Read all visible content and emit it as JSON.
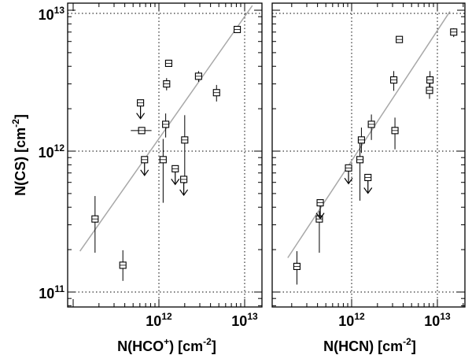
{
  "chart_data": [
    {
      "type": "scatter",
      "xlabel": "N(HCO⁺) [cm⁻²]",
      "ylabel": "N(CS) [cm⁻²]",
      "xscale": "log",
      "yscale": "log",
      "xlim": [
        100000000000.0,
        19000000000000.0
      ],
      "ylim": [
        85000000000.0,
        11400000000000.0
      ],
      "grid": "dotted at decades",
      "x_tick_labels": [
        "10¹²",
        "10¹³"
      ],
      "y_tick_labels": [
        "10¹¹",
        "10¹²",
        "10¹³"
      ],
      "fit_line": {
        "x": [
          120000000000.0,
          12300000000000.0
        ],
        "y": [
          195000000000.0,
          10800000000000.0
        ]
      },
      "points": [
        {
          "x": 180000000000.0,
          "y": 330000000000.0,
          "y_err_lo": 190000000000.0,
          "y_err_hi": 480000000000.0
        },
        {
          "x": 380000000000.0,
          "y": 155000000000.0,
          "y_err_lo": 120000000000.0,
          "y_err_hi": 198000000000.0
        },
        {
          "x": 610000000000.0,
          "y": 2200000000000.0,
          "upper_limit": true
        },
        {
          "x": 630000000000.0,
          "y": 1400000000000.0,
          "x_err_lo": 470000000000.0,
          "x_err_hi": 820000000000.0
        },
        {
          "x": 680000000000.0,
          "y": 870000000000.0,
          "upper_limit": true
        },
        {
          "x": 1120000000000.0,
          "y": 870000000000.0,
          "y_err_lo": 430000000000.0,
          "y_err_hi": 1220000000000.0
        },
        {
          "x": 1200000000000.0,
          "y": 1550000000000.0,
          "y_err_lo": 1250000000000.0,
          "y_err_hi": 1850000000000.0
        },
        {
          "x": 1230000000000.0,
          "y": 3000000000000.0,
          "y_err_lo": 2700000000000.0,
          "y_err_hi": 3300000000000.0
        },
        {
          "x": 1300000000000.0,
          "y": 4200000000000.0
        },
        {
          "x": 1550000000000.0,
          "y": 750000000000.0,
          "upper_limit": true
        },
        {
          "x": 2000000000000.0,
          "y": 1200000000000.0,
          "y_err_lo": 590000000000.0,
          "y_err_hi": 1800000000000.0
        },
        {
          "x": 1950000000000.0,
          "y": 630000000000.0,
          "upper_limit": true
        },
        {
          "x": 2900000000000.0,
          "y": 3400000000000.0,
          "y_err_lo": 3100000000000.0,
          "y_err_hi": 3700000000000.0
        },
        {
          "x": 4700000000000.0,
          "y": 2600000000000.0,
          "y_err_lo": 2250000000000.0,
          "y_err_hi": 2950000000000.0
        },
        {
          "x": 8200000000000.0,
          "y": 7300000000000.0
        }
      ]
    },
    {
      "type": "scatter",
      "xlabel": "N(HCN) [cm⁻²]",
      "ylabel": "",
      "xscale": "log",
      "yscale": "log",
      "xlim": [
        160000000000.0,
        19000000000000.0
      ],
      "ylim": [
        85000000000.0,
        11400000000000.0
      ],
      "grid": "dotted at decades",
      "x_tick_labels": [
        "10¹²",
        "10¹³"
      ],
      "fit_line": {
        "x": [
          180000000000.0,
          14000000000000.0
        ],
        "y": [
          175000000000.0,
          9800000000000.0
        ]
      },
      "points": [
        {
          "x": 230000000000.0,
          "y": 152000000000.0,
          "y_err_lo": 113000000000.0,
          "y_err_hi": 195000000000.0
        },
        {
          "x": 420000000000.0,
          "y": 330000000000.0,
          "y_err_lo": 190000000000.0,
          "y_err_hi": 375000000000.0
        },
        {
          "x": 430000000000.0,
          "y": 430000000000.0,
          "upper_limit": true
        },
        {
          "x": 920000000000.0,
          "y": 760000000000.0,
          "upper_limit": true
        },
        {
          "x": 1250000000000.0,
          "y": 870000000000.0,
          "y_err_lo": 445000000000.0,
          "y_err_hi": 1200000000000.0
        },
        {
          "x": 1300000000000.0,
          "y": 1200000000000.0,
          "y_err_lo": 970000000000.0,
          "y_err_hi": 1470000000000.0
        },
        {
          "x": 1550000000000.0,
          "y": 650000000000.0,
          "upper_limit": true
        },
        {
          "x": 1700000000000.0,
          "y": 1550000000000.0,
          "y_err_lo": 1200000000000.0,
          "y_err_hi": 1820000000000.0
        },
        {
          "x": 3200000000000.0,
          "y": 1400000000000.0,
          "y_err_lo": 1030000000000.0,
          "y_err_hi": 1730000000000.0
        },
        {
          "x": 3100000000000.0,
          "y": 3200000000000.0,
          "y_err_lo": 2680000000000.0,
          "y_err_hi": 3700000000000.0
        },
        {
          "x": 3600000000000.0,
          "y": 6200000000000.0
        },
        {
          "x": 8100000000000.0,
          "y": 2700000000000.0,
          "y_err_lo": 2350000000000.0,
          "y_err_hi": 3050000000000.0
        },
        {
          "x": 8200000000000.0,
          "y": 3200000000000.0,
          "y_err_lo": 2830000000000.0,
          "y_err_hi": 3700000000000.0
        },
        {
          "x": 15500000000000.0,
          "y": 7000000000000.0,
          "y_err_lo": 6450000000000.0,
          "y_err_hi": 7450000000000.0
        }
      ]
    }
  ]
}
